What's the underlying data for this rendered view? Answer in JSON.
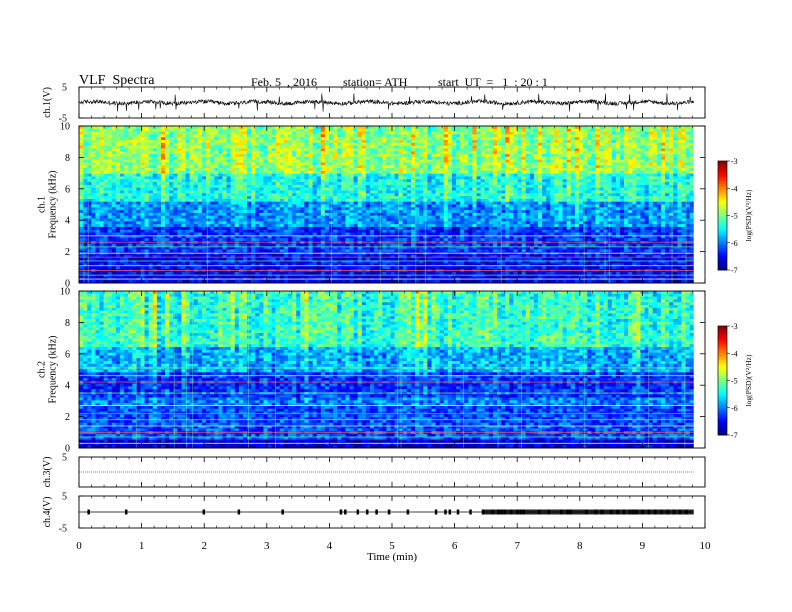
{
  "header": {
    "title": "VLF  Spectra",
    "date": "Feb. 5  , 2016",
    "station": "station= ATH",
    "start": "start  UT  =   1  : 20 : 1"
  },
  "chart_data": {
    "type": "heatmap",
    "xlabel": "Time  (min)",
    "xlim": [
      0,
      10
    ],
    "xticks": [
      "0",
      "1",
      "2",
      "3",
      "4",
      "5",
      "6",
      "7",
      "8",
      "9",
      "10"
    ],
    "data_end_min": 9.82,
    "panels": [
      {
        "id": "ch1_waveform",
        "type": "line",
        "ylabel": "ch.1(V)",
        "ylim": [
          -5,
          5
        ],
        "yticks": [
          "5",
          "-5"
        ],
        "baseline": 0.0,
        "description_values": {
          "mean": 0.0,
          "typical_range": [
            -0.6,
            0.6
          ],
          "spikes_to": [
            -2.8,
            2.6
          ]
        }
      },
      {
        "id": "ch1_spectrogram",
        "type": "heatmap",
        "ylabel": "ch.1\nFrequency (kHz)",
        "ylim": [
          0,
          10
        ],
        "yticks": [
          "0",
          "2",
          "4",
          "6",
          "8",
          "10"
        ],
        "colorbar": {
          "label": "log(PSD)(V²/Hz)",
          "range": [
            -7,
            -3
          ],
          "ticks": [
            "-3",
            "-4",
            "-5",
            "-6",
            "-7"
          ]
        },
        "band_levels": [
          {
            "from_khz": 0.0,
            "to_khz": 0.6,
            "logpsd": -6.6
          },
          {
            "from_khz": 0.6,
            "to_khz": 2.0,
            "logpsd": -6.5
          },
          {
            "from_khz": 2.0,
            "to_khz": 3.6,
            "logpsd": -6.3
          },
          {
            "from_khz": 3.6,
            "to_khz": 5.2,
            "logpsd": -5.9
          },
          {
            "from_khz": 5.2,
            "to_khz": 7.0,
            "logpsd": -5.4
          },
          {
            "from_khz": 7.0,
            "to_khz": 10.0,
            "logpsd": -4.9
          }
        ],
        "lines_khz": [
          0.25,
          0.5,
          0.8,
          1.1,
          1.4,
          1.65,
          1.9,
          2.3,
          2.6,
          3.0
        ]
      },
      {
        "id": "ch2_spectrogram",
        "type": "heatmap",
        "ylabel": "ch.2\nFrequency (kHz)",
        "ylim": [
          0,
          10
        ],
        "yticks": [
          "0",
          "2",
          "4",
          "6",
          "8",
          "10"
        ],
        "colorbar": {
          "label": "log(PSD)(V²/Hz)",
          "range": [
            -7,
            -3
          ],
          "ticks": [
            "-3",
            "-4",
            "-5",
            "-6",
            "-7"
          ]
        },
        "band_levels": [
          {
            "from_khz": 0.0,
            "to_khz": 0.5,
            "logpsd": -6.7
          },
          {
            "from_khz": 0.5,
            "to_khz": 2.6,
            "logpsd": -6.2
          },
          {
            "from_khz": 2.6,
            "to_khz": 3.2,
            "logpsd": -6.0
          },
          {
            "from_khz": 3.2,
            "to_khz": 4.8,
            "logpsd": -6.3
          },
          {
            "from_khz": 4.8,
            "to_khz": 6.5,
            "logpsd": -5.8
          },
          {
            "from_khz": 6.5,
            "to_khz": 10.0,
            "logpsd": -5.3
          }
        ],
        "lines_khz": [
          0.3,
          0.7,
          1.0,
          1.4,
          1.8,
          2.2,
          2.7,
          3.5,
          4.2,
          4.6,
          5.1
        ]
      },
      {
        "id": "ch3_waveform",
        "type": "line",
        "ylabel": "ch.3(V)",
        "ylim": [
          -5,
          5
        ],
        "yticks": [
          "5"
        ],
        "baseline": 0.0
      },
      {
        "id": "ch4_waveform",
        "type": "line",
        "ylabel": "ch.4(V)",
        "ylim": [
          -5,
          5
        ],
        "yticks": [
          "5",
          "-5"
        ],
        "baseline": 0.0,
        "pulses_min": [
          0.15,
          0.75,
          1.99,
          2.55,
          3.25,
          4.18,
          4.25,
          4.45,
          4.6,
          4.75,
          4.95,
          5.25,
          5.7,
          5.85,
          5.92,
          6.05,
          6.25,
          6.45,
          6.6,
          6.7,
          6.75,
          6.8,
          6.9,
          7.0,
          7.05,
          7.1,
          7.35,
          7.5,
          7.7,
          7.8,
          7.85,
          8.1,
          8.25,
          8.35,
          8.5,
          8.6,
          8.7,
          8.8,
          8.85,
          8.9,
          9.0,
          9.1,
          9.2,
          9.3,
          9.4,
          9.5,
          9.6,
          9.7
        ]
      }
    ]
  }
}
